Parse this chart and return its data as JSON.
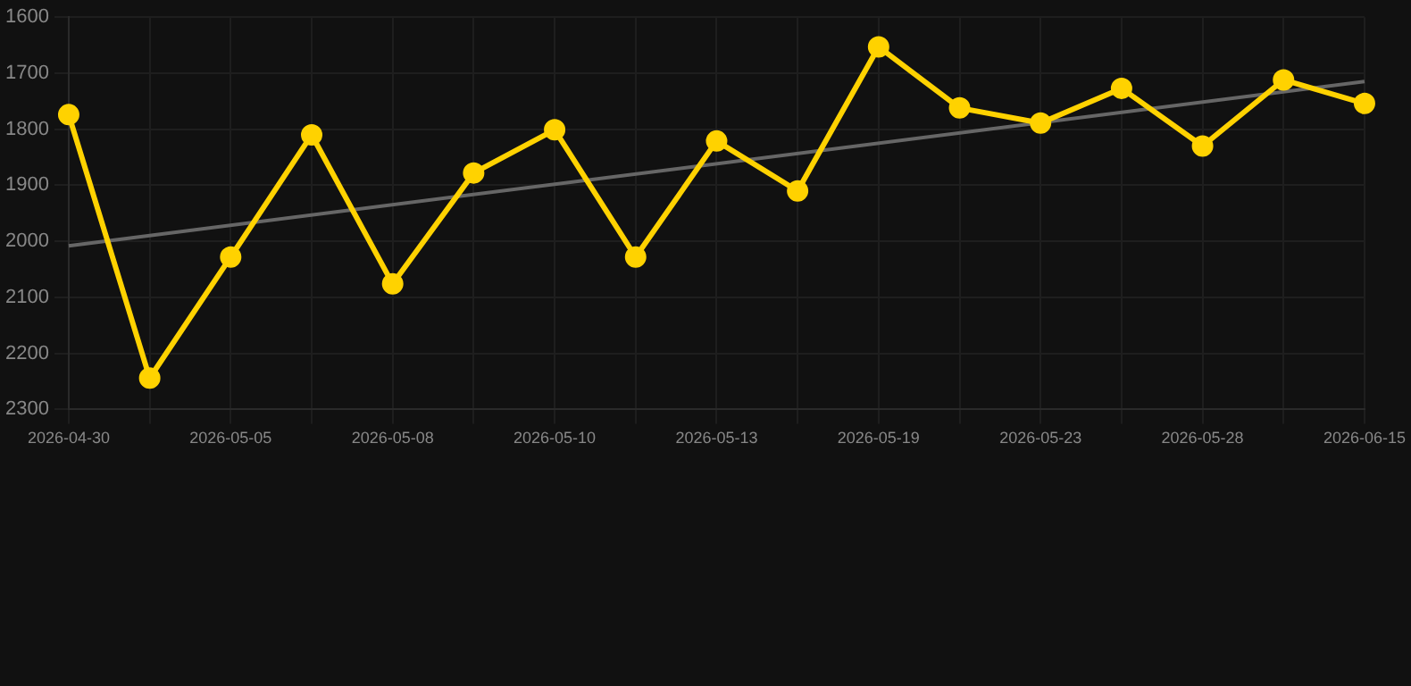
{
  "chart_data": {
    "type": "line",
    "categories": [
      "2026-04-30",
      null,
      "2026-05-05",
      null,
      "2026-05-08",
      null,
      "2026-05-10",
      null,
      "2026-05-13",
      null,
      "2026-05-19",
      null,
      "2026-05-23",
      null,
      "2026-05-28",
      null,
      "2026-06-15"
    ],
    "series": [
      {
        "color": "#ffd200",
        "values": [
          1774,
          2244,
          2028,
          1810,
          2076,
          1878,
          1801,
          2028,
          1821,
          1910,
          1653,
          1762,
          1789,
          1727,
          1830,
          1712,
          1754
        ]
      },
      {
        "type": "line",
        "color": "#666666",
        "marker": "none",
        "values": [
          2008,
          null,
          null,
          null,
          null,
          null,
          null,
          null,
          null,
          null,
          null,
          null,
          null,
          null,
          null,
          null,
          1715
        ]
      }
    ],
    "ylim": [
      2300,
      1600
    ],
    "yticks": [
      1600,
      1700,
      1800,
      1900,
      2000,
      2100,
      2200,
      2300
    ],
    "grid": true,
    "marker": "circle",
    "line_style": "solid"
  }
}
